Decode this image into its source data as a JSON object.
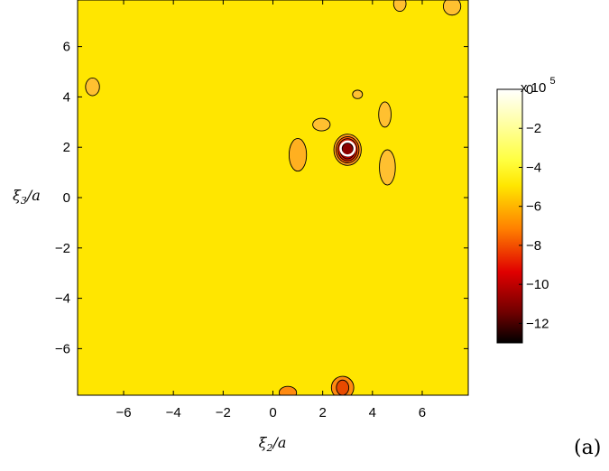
{
  "chart_data": {
    "type": "heatmap",
    "subtype": "filled-contour",
    "xlabel": "ξ2/a",
    "ylabel": "ξ3/a",
    "xlim": [
      -7.85,
      7.85
    ],
    "ylim": [
      -7.85,
      7.85
    ],
    "xticks": [
      -6,
      -4,
      -2,
      0,
      2,
      4,
      6
    ],
    "yticks": [
      -6,
      -4,
      -2,
      0,
      2,
      4,
      6
    ],
    "xtick_labels": [
      "−6",
      "−4",
      "−2",
      "0",
      "2",
      "4",
      "6"
    ],
    "ytick_labels": [
      "−6",
      "−4",
      "−2",
      "0",
      "2",
      "4",
      "6"
    ],
    "colormap": "hot",
    "background_color": "#ffe600",
    "colorbar": {
      "range": [
        -13,
        0
      ],
      "ticks": [
        0,
        -2,
        -4,
        -6,
        -8,
        -10,
        -12
      ],
      "tick_labels": [
        "0",
        "−2",
        "−4",
        "−6",
        "−8",
        "−10",
        "−12"
      ],
      "multiplier_label": "x 10",
      "multiplier_exponent": "5"
    },
    "marker": {
      "shape": "circle",
      "color": "#ffffff",
      "x": 3.0,
      "y": 1.95,
      "radius": 0.28
    },
    "features": [
      {
        "name": "main-minimum",
        "x": 3.0,
        "y": 1.9,
        "min_value": -12,
        "levels": [
          {
            "rx": 0.55,
            "ry": 0.62,
            "color": "#ff9a1a"
          },
          {
            "rx": 0.46,
            "ry": 0.52,
            "color": "#ff5a00"
          },
          {
            "rx": 0.38,
            "ry": 0.44,
            "color": "#e81e00"
          },
          {
            "rx": 0.3,
            "ry": 0.36,
            "color": "#b80000"
          },
          {
            "rx": 0.22,
            "ry": 0.27,
            "color": "#8a0000"
          }
        ]
      },
      {
        "name": "left-lobe",
        "x": 1.0,
        "y": 1.7,
        "levels": [
          {
            "rx": 0.35,
            "ry": 0.65,
            "color": "#ffb020"
          }
        ]
      },
      {
        "name": "right-arm",
        "x": 4.6,
        "y": 1.2,
        "levels": [
          {
            "rx": 0.32,
            "ry": 0.7,
            "color": "#ffc030"
          }
        ]
      },
      {
        "name": "upper-left-lobe",
        "x": 1.95,
        "y": 2.9,
        "levels": [
          {
            "rx": 0.35,
            "ry": 0.25,
            "color": "#ffc030"
          }
        ]
      },
      {
        "name": "upper-right-lobe",
        "x": 4.5,
        "y": 3.3,
        "levels": [
          {
            "rx": 0.25,
            "ry": 0.5,
            "color": "#ffc030"
          }
        ]
      },
      {
        "name": "small-lobe",
        "x": 3.4,
        "y": 4.1,
        "levels": [
          {
            "rx": 0.2,
            "ry": 0.17,
            "color": "#ffc030"
          }
        ]
      },
      {
        "name": "left-edge-lobe",
        "x": -7.25,
        "y": 4.4,
        "levels": [
          {
            "rx": 0.28,
            "ry": 0.35,
            "color": "#ffc030"
          }
        ]
      },
      {
        "name": "bottom-lobe-a",
        "x": 0.6,
        "y": -7.75,
        "levels": [
          {
            "rx": 0.35,
            "ry": 0.25,
            "color": "#ff8a10"
          }
        ]
      },
      {
        "name": "bottom-lobe-b",
        "x": 2.8,
        "y": -7.55,
        "levels": [
          {
            "rx": 0.45,
            "ry": 0.45,
            "color": "#ff8a10"
          },
          {
            "rx": 0.25,
            "ry": 0.3,
            "color": "#e84a00"
          }
        ]
      },
      {
        "name": "top-lobe-a",
        "x": 5.1,
        "y": 7.7,
        "levels": [
          {
            "rx": 0.25,
            "ry": 0.3,
            "color": "#ffc030"
          }
        ]
      },
      {
        "name": "top-lobe-b",
        "x": 7.2,
        "y": 7.6,
        "levels": [
          {
            "rx": 0.35,
            "ry": 0.35,
            "color": "#ffc030"
          }
        ]
      }
    ]
  },
  "panel_label": "(a)"
}
